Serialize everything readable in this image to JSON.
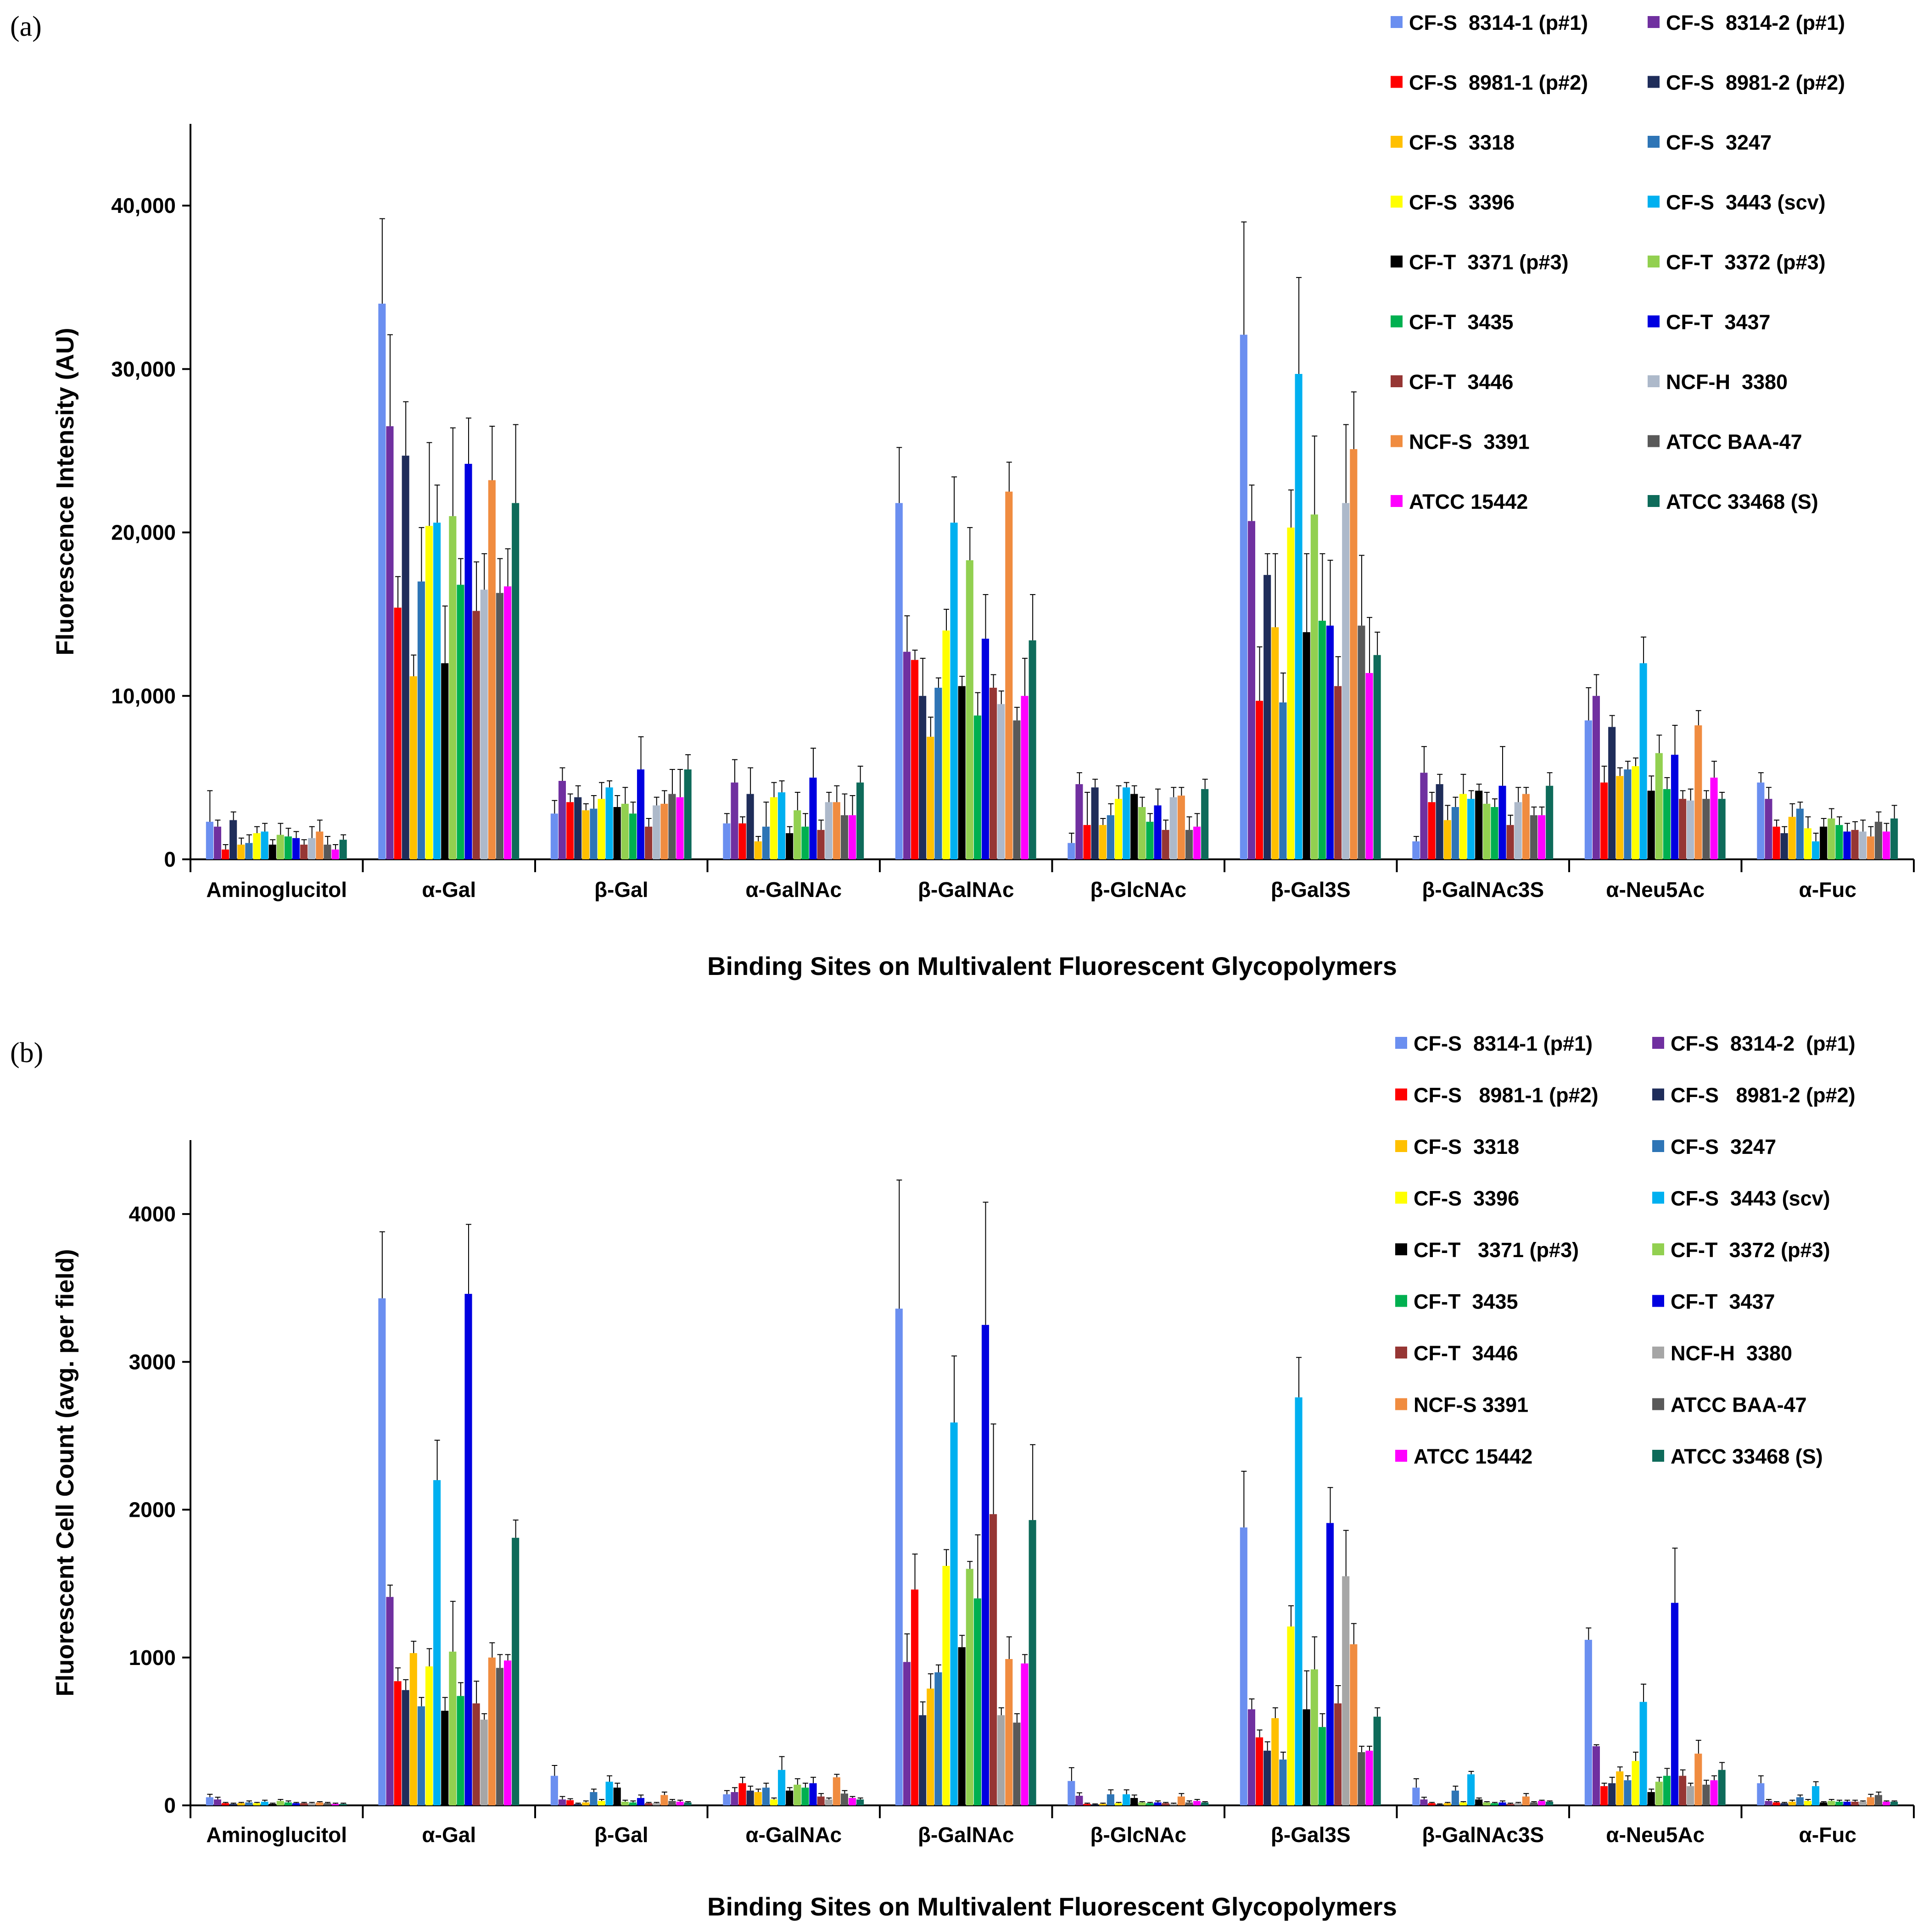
{
  "chart_data": [
    {
      "panel_label": "(a)",
      "type": "bar",
      "title": "",
      "xlabel": "Binding Sites on Multivalent Fluorescent Glycopolymers",
      "ylabel": "Fluorescence Intensity (AU)",
      "ylim": [
        0,
        45000
      ],
      "yticks": [
        0,
        10000,
        20000,
        30000,
        40000
      ],
      "ytick_labels": [
        "0",
        "10,000",
        "20,000",
        "30,000",
        "40,000"
      ],
      "legend_position": "top-right",
      "categories": [
        "Aminoglucitol",
        "α-Gal",
        "β-Gal",
        "α-GalNAc",
        "β-GalNAc",
        "β-GlcNAc",
        "β-Gal3S",
        "β-GalNAc3S",
        "α-Neu5Ac",
        "α-Fuc"
      ],
      "series": [
        {
          "name": "CF-S  8314-1 (p#1)",
          "color": "#6b8ff0",
          "values": [
            2300,
            34000,
            2800,
            2200,
            21800,
            1000,
            32100,
            1100,
            8500,
            4700
          ],
          "errors": [
            1900,
            5200,
            800,
            600,
            3400,
            600,
            6900,
            300,
            2000,
            600
          ]
        },
        {
          "name": "CF-S  8314-2 (p#1)",
          "color": "#7030a0",
          "values": [
            2000,
            26500,
            4800,
            4700,
            12700,
            4600,
            20700,
            5300,
            10000,
            3700
          ],
          "errors": [
            400,
            5600,
            800,
            1400,
            2200,
            700,
            2200,
            1600,
            1300,
            700
          ]
        },
        {
          "name": "CF-S  8981-1 (p#2)",
          "color": "#ff0000",
          "values": [
            600,
            15400,
            3500,
            2200,
            12200,
            2100,
            9700,
            3500,
            4700,
            2000
          ],
          "errors": [
            300,
            1900,
            500,
            400,
            600,
            2000,
            3300,
            600,
            1000,
            400
          ]
        },
        {
          "name": "CF-S  8981-2 (p#2)",
          "color": "#1f2d5a",
          "values": [
            2400,
            24700,
            3800,
            4000,
            10000,
            4400,
            17400,
            4600,
            8100,
            1600
          ],
          "errors": [
            500,
            3300,
            700,
            1600,
            2300,
            500,
            1300,
            600,
            700,
            400
          ]
        },
        {
          "name": "CF-S  3318",
          "color": "#ffc000",
          "values": [
            900,
            11200,
            3000,
            1100,
            7500,
            2100,
            14200,
            2400,
            5100,
            2600
          ],
          "errors": [
            400,
            1300,
            400,
            300,
            1200,
            400,
            4500,
            900,
            500,
            800
          ]
        },
        {
          "name": "CF-S  3247",
          "color": "#2e75b6",
          "values": [
            1000,
            17000,
            3100,
            2000,
            10500,
            2700,
            9600,
            3200,
            5500,
            3100
          ],
          "errors": [
            500,
            3300,
            800,
            1500,
            600,
            700,
            1800,
            600,
            500,
            400
          ]
        },
        {
          "name": "CF-S  3396",
          "color": "#ffff00",
          "values": [
            1600,
            20400,
            3700,
            3800,
            14000,
            3700,
            20300,
            4000,
            5700,
            1900
          ],
          "errors": [
            400,
            5100,
            1000,
            900,
            1300,
            800,
            2300,
            1200,
            500,
            700
          ]
        },
        {
          "name": "CF-S  3443 (scv)",
          "color": "#00b0f0",
          "values": [
            1700,
            20600,
            4400,
            4100,
            20600,
            4400,
            29700,
            3700,
            12000,
            1100
          ],
          "errors": [
            500,
            2300,
            400,
            700,
            2800,
            300,
            5900,
            500,
            1600,
            500
          ]
        },
        {
          "name": "CF-T  3371 (p#3)",
          "color": "#000000",
          "values": [
            900,
            12000,
            3200,
            1600,
            10600,
            4000,
            13900,
            4200,
            4200,
            2000
          ],
          "errors": [
            300,
            3500,
            700,
            400,
            600,
            500,
            4800,
            400,
            900,
            500
          ]
        },
        {
          "name": "CF-T  3372 (p#3)",
          "color": "#92d050",
          "values": [
            1500,
            21000,
            3400,
            3000,
            18300,
            3200,
            21100,
            3400,
            6500,
            2500
          ],
          "errors": [
            700,
            5400,
            1000,
            1100,
            2000,
            600,
            4800,
            700,
            1100,
            600
          ]
        },
        {
          "name": "CF-T  3435",
          "color": "#00b050",
          "values": [
            1400,
            16800,
            2800,
            2000,
            8800,
            2300,
            14600,
            3200,
            4300,
            2100
          ],
          "errors": [
            500,
            1600,
            700,
            800,
            1400,
            500,
            4100,
            500,
            700,
            500
          ]
        },
        {
          "name": "CF-T  3437",
          "color": "#0000e0",
          "values": [
            1300,
            24200,
            5500,
            5000,
            13500,
            3300,
            14300,
            4500,
            6400,
            1700
          ],
          "errors": [
            400,
            2800,
            2000,
            1800,
            2700,
            1000,
            4000,
            2400,
            1800,
            500
          ]
        },
        {
          "name": "CF-T  3446",
          "color": "#963634",
          "values": [
            900,
            15200,
            2000,
            1800,
            10500,
            1800,
            10600,
            2100,
            3700,
            1800
          ],
          "errors": [
            300,
            3000,
            500,
            600,
            800,
            600,
            1800,
            600,
            500,
            500
          ]
        },
        {
          "name": "NCF-H  3380",
          "color": "#adb9ca",
          "values": [
            1300,
            16500,
            3300,
            3500,
            9500,
            3800,
            21800,
            3500,
            3600,
            1700
          ],
          "errors": [
            700,
            2200,
            500,
            600,
            800,
            600,
            4800,
            900,
            700,
            700
          ]
        },
        {
          "name": "NCF-S  3391",
          "color": "#f08c40",
          "values": [
            1700,
            23200,
            3400,
            3500,
            22500,
            3900,
            25100,
            4000,
            8200,
            1400
          ],
          "errors": [
            700,
            3300,
            800,
            1000,
            1800,
            500,
            3500,
            400,
            900,
            600
          ]
        },
        {
          "name": "ATCC BAA-47",
          "color": "#595959",
          "values": [
            900,
            16300,
            4000,
            2700,
            8500,
            1800,
            14300,
            2700,
            3700,
            2300
          ],
          "errors": [
            500,
            2100,
            1500,
            1300,
            800,
            800,
            4300,
            500,
            500,
            600
          ]
        },
        {
          "name": "ATCC 15442",
          "color": "#ff00ff",
          "values": [
            600,
            16700,
            3800,
            2700,
            10000,
            2000,
            11400,
            2700,
            5000,
            1700
          ],
          "errors": [
            300,
            2300,
            1700,
            1200,
            2300,
            800,
            3400,
            500,
            1000,
            500
          ]
        },
        {
          "name": "ATCC 33468 (S)",
          "color": "#0e6b5a",
          "values": [
            1200,
            21800,
            5500,
            4700,
            13400,
            4300,
            12500,
            4500,
            3700,
            2500
          ],
          "errors": [
            300,
            4800,
            900,
            1000,
            2800,
            600,
            1400,
            800,
            400,
            800
          ]
        }
      ]
    },
    {
      "panel_label": "(b)",
      "type": "bar",
      "title": "",
      "xlabel": "Binding Sites on Multivalent Fluorescent Glycopolymers",
      "ylabel": "Fluorescent Cell Count  (avg. per field)",
      "ylim": [
        0,
        4500
      ],
      "yticks": [
        0,
        1000,
        2000,
        3000,
        4000
      ],
      "ytick_labels": [
        "0",
        "1000",
        "2000",
        "3000",
        "4000"
      ],
      "legend_position": "top-right",
      "categories": [
        "Aminoglucitol",
        "α-Gal",
        "β-Gal",
        "α-GalNAc",
        "β-GalNAc",
        "β-GlcNAc",
        "β-Gal3S",
        "β-GalNAc3S",
        "α-Neu5Ac",
        "α-Fuc"
      ],
      "series": [
        {
          "name": "CF-S  8314-1 (p#1)",
          "color": "#6b8ff0",
          "values": [
            55,
            3430,
            200,
            75,
            3360,
            165,
            1880,
            120,
            1120,
            150
          ],
          "errors": [
            20,
            450,
            70,
            25,
            870,
            90,
            380,
            60,
            80,
            50
          ]
        },
        {
          "name": "CF-S  8314-2  (p#1)",
          "color": "#7030a0",
          "values": [
            40,
            1410,
            40,
            90,
            970,
            65,
            650,
            40,
            400,
            30
          ],
          "errors": [
            15,
            80,
            20,
            30,
            190,
            20,
            70,
            15,
            10,
            10
          ]
        },
        {
          "name": "CF-S   8981-1 (p#2)",
          "color": "#ff0000",
          "values": [
            15,
            840,
            35,
            150,
            1460,
            10,
            460,
            15,
            130,
            20
          ],
          "errors": [
            5,
            90,
            10,
            40,
            240,
            5,
            50,
            5,
            20,
            5
          ]
        },
        {
          "name": "CF-S   8981-2 (p#2)",
          "color": "#1f2d5a",
          "values": [
            10,
            780,
            10,
            100,
            610,
            5,
            370,
            5,
            150,
            15
          ],
          "errors": [
            5,
            70,
            5,
            30,
            90,
            5,
            60,
            5,
            40,
            5
          ]
        },
        {
          "name": "CF-S  3318",
          "color": "#ffc000",
          "values": [
            15,
            1030,
            20,
            90,
            790,
            10,
            590,
            15,
            230,
            25
          ],
          "errors": [
            5,
            80,
            10,
            20,
            100,
            5,
            70,
            5,
            30,
            10
          ]
        },
        {
          "name": "CF-S  3247",
          "color": "#2e75b6",
          "values": [
            20,
            670,
            90,
            120,
            900,
            75,
            310,
            100,
            170,
            55
          ],
          "errors": [
            10,
            60,
            20,
            30,
            50,
            30,
            50,
            30,
            30,
            15
          ]
        },
        {
          "name": "CF-S  3396",
          "color": "#ffff00",
          "values": [
            15,
            940,
            30,
            40,
            1620,
            15,
            1210,
            20,
            300,
            30
          ],
          "errors": [
            5,
            120,
            10,
            10,
            110,
            5,
            140,
            5,
            60,
            10
          ]
        },
        {
          "name": "CF-S  3443 (scv)",
          "color": "#00b0f0",
          "values": [
            25,
            2200,
            160,
            240,
            2590,
            75,
            2760,
            210,
            700,
            130
          ],
          "errors": [
            10,
            270,
            40,
            90,
            450,
            30,
            270,
            20,
            120,
            30
          ]
        },
        {
          "name": "CF-T   3371 (p#3)",
          "color": "#000000",
          "values": [
            10,
            640,
            120,
            100,
            1070,
            50,
            650,
            40,
            90,
            20
          ],
          "errors": [
            5,
            90,
            30,
            20,
            80,
            20,
            260,
            10,
            20,
            5
          ]
        },
        {
          "name": "CF-T  3372 (p#3)",
          "color": "#92d050",
          "values": [
            30,
            1040,
            25,
            140,
            1600,
            20,
            920,
            20,
            160,
            30
          ],
          "errors": [
            10,
            340,
            10,
            40,
            50,
            5,
            220,
            5,
            30,
            10
          ]
        },
        {
          "name": "CF-T  3435",
          "color": "#00b050",
          "values": [
            20,
            740,
            20,
            120,
            1400,
            15,
            530,
            15,
            200,
            25
          ],
          "errors": [
            10,
            90,
            10,
            30,
            430,
            5,
            90,
            5,
            50,
            10
          ]
        },
        {
          "name": "CF-T  3437",
          "color": "#0000e0",
          "values": [
            15,
            3460,
            50,
            150,
            3250,
            20,
            1910,
            20,
            1370,
            25
          ],
          "errors": [
            5,
            470,
            20,
            40,
            830,
            10,
            240,
            10,
            370,
            10
          ]
        },
        {
          "name": "CF-T  3446",
          "color": "#963634",
          "values": [
            15,
            690,
            15,
            60,
            1970,
            15,
            690,
            10,
            200,
            25
          ],
          "errors": [
            5,
            150,
            5,
            20,
            610,
            5,
            120,
            5,
            40,
            10
          ]
        },
        {
          "name": "NCF-H  3380",
          "color": "#a6a6a6",
          "values": [
            15,
            580,
            15,
            40,
            610,
            10,
            1550,
            15,
            130,
            25
          ],
          "errors": [
            5,
            40,
            5,
            10,
            50,
            5,
            310,
            5,
            20,
            5
          ]
        },
        {
          "name": "NCF-S 3391",
          "color": "#f08c40",
          "values": [
            20,
            1000,
            70,
            190,
            990,
            60,
            1090,
            60,
            350,
            55
          ],
          "errors": [
            5,
            100,
            20,
            20,
            150,
            20,
            140,
            20,
            90,
            20
          ]
        },
        {
          "name": "ATCC BAA-47",
          "color": "#595959",
          "values": [
            15,
            930,
            30,
            80,
            560,
            20,
            360,
            20,
            140,
            70
          ],
          "errors": [
            5,
            90,
            10,
            20,
            60,
            10,
            40,
            5,
            30,
            20
          ]
        },
        {
          "name": "ATCC 15442",
          "color": "#ff00ff",
          "values": [
            10,
            980,
            25,
            50,
            960,
            30,
            370,
            30,
            170,
            25
          ],
          "errors": [
            5,
            40,
            10,
            10,
            60,
            10,
            30,
            5,
            30,
            5
          ]
        },
        {
          "name": "ATCC 33468 (S)",
          "color": "#0e6b5a",
          "values": [
            10,
            1810,
            20,
            40,
            1930,
            20,
            600,
            25,
            240,
            25
          ],
          "errors": [
            5,
            120,
            5,
            10,
            510,
            5,
            60,
            5,
            50,
            5
          ]
        }
      ]
    }
  ]
}
